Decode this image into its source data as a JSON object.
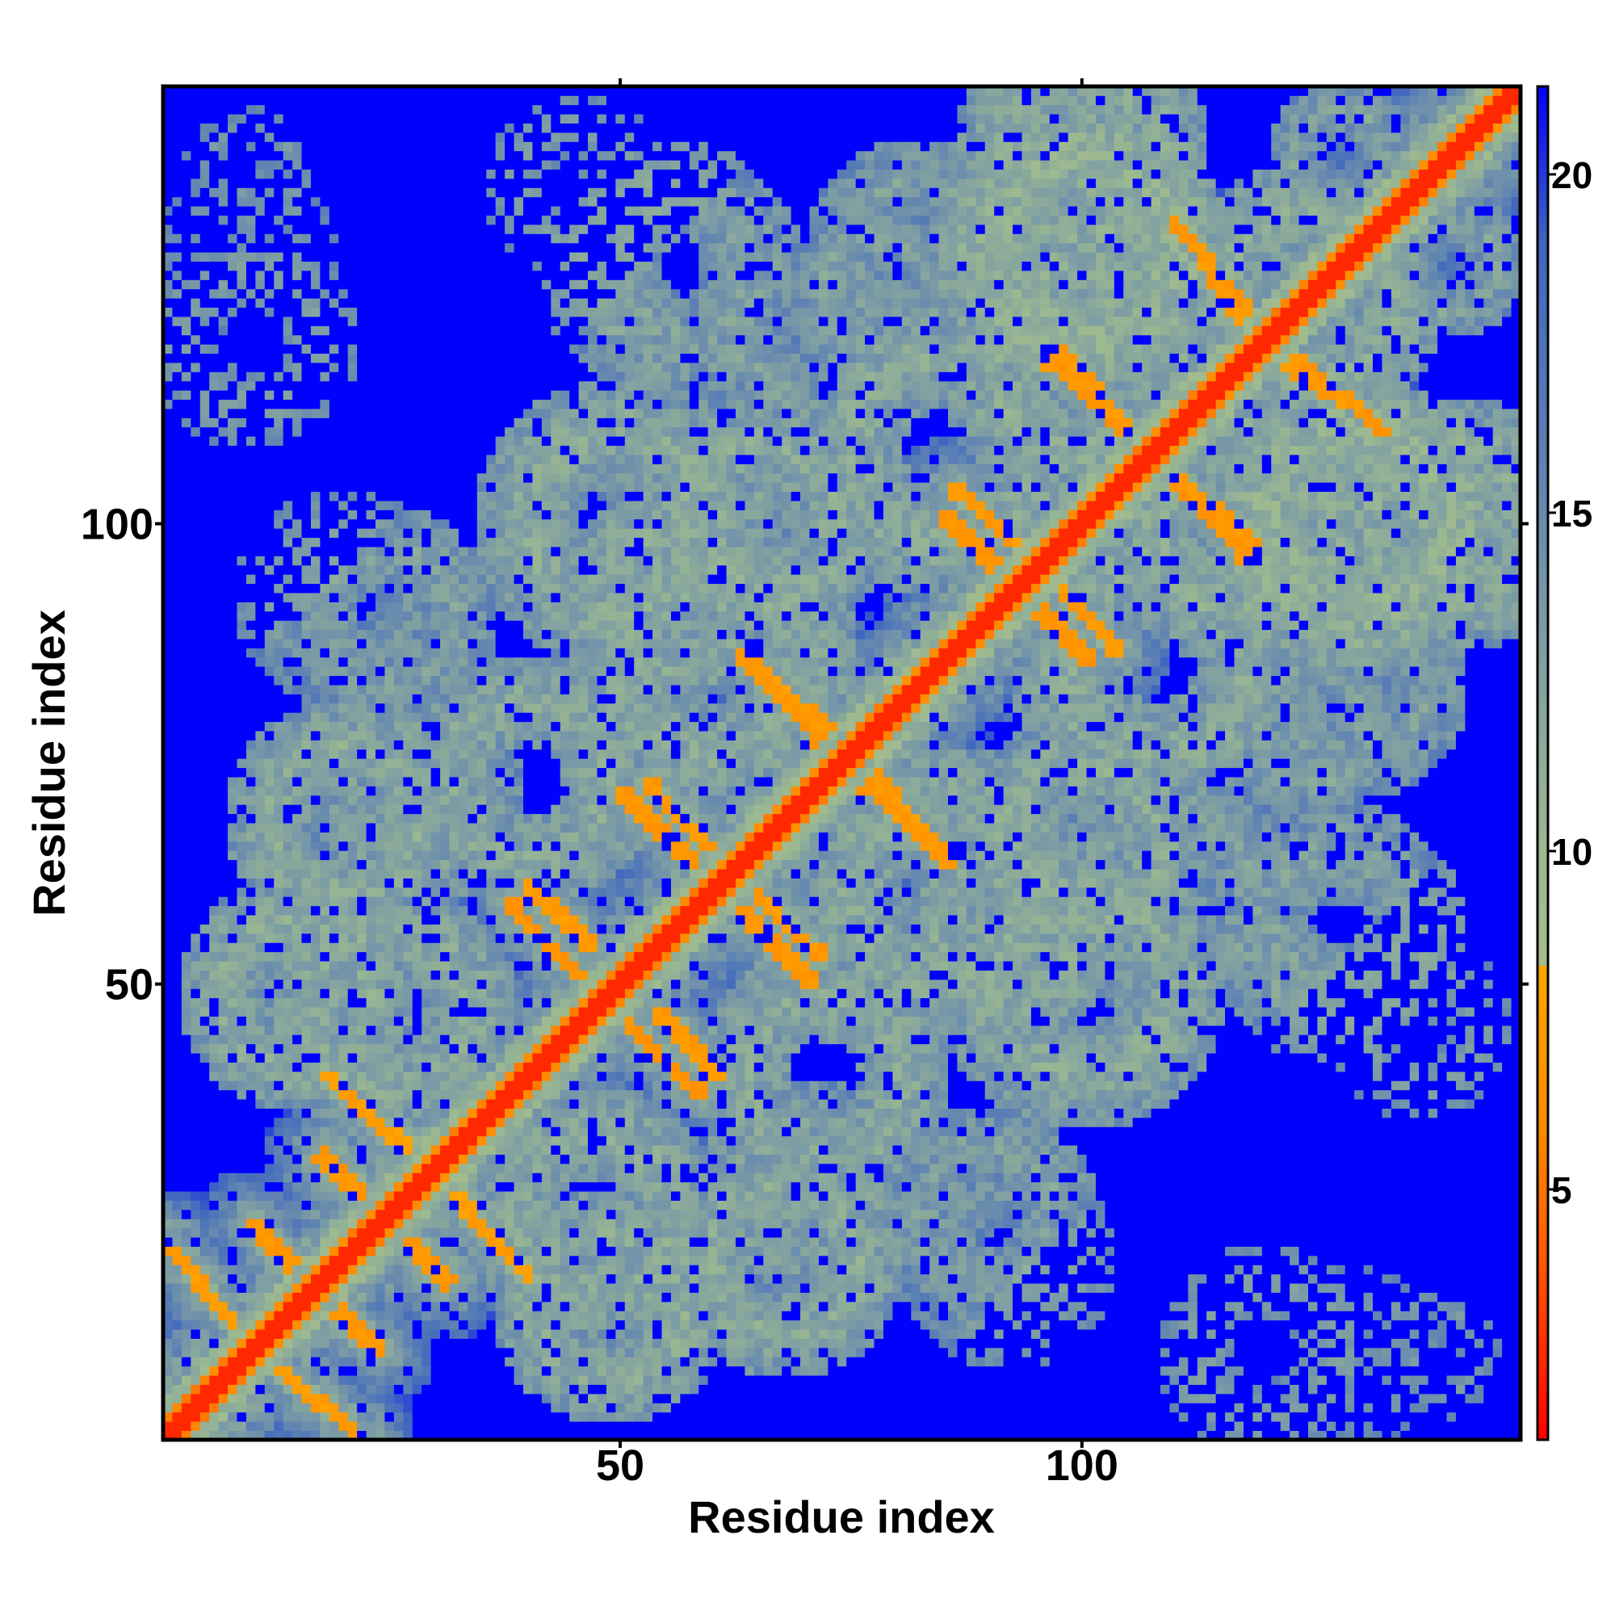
{
  "chart_data": {
    "type": "heatmap",
    "title": "",
    "xlabel": "Residue index",
    "ylabel": "Residue index",
    "xlim": [
      0.5,
      147.5
    ],
    "ylim": [
      0.5,
      147.5
    ],
    "x_ticks": [
      50,
      100
    ],
    "y_ticks": [
      50,
      100
    ],
    "n_residues": 147,
    "grid": false,
    "legend": "right",
    "colorbar": {
      "range": [
        1.3,
        21.3
      ],
      "ticks": [
        5,
        10,
        15,
        20
      ],
      "stops": [
        {
          "value": 1.3,
          "color": "#ff0000"
        },
        {
          "value": 4.0,
          "color": "#ff5a00"
        },
        {
          "value": 6.0,
          "color": "#ff8c00"
        },
        {
          "value": 8.3,
          "color": "#ffa500"
        },
        {
          "value": 8.31,
          "color": "#a7bd8c"
        },
        {
          "value": 10.0,
          "color": "#9bb891"
        },
        {
          "value": 13.5,
          "color": "#7a9aa6"
        },
        {
          "value": 16.0,
          "color": "#5b7fb4"
        },
        {
          "value": 19.0,
          "color": "#3f66c0"
        },
        {
          "value": 21.3,
          "color": "#0000ff"
        }
      ]
    },
    "background_value": 21.3,
    "diagonal": {
      "value": 2.5
    },
    "contact_bands": [
      {
        "from": [
          10,
          24
        ],
        "to": [
          24,
          10
        ],
        "value": 7.2
      },
      {
        "from": [
          13,
          8
        ],
        "to": [
          22,
          1
        ],
        "value": 7.4
      },
      {
        "from": [
          17,
          31
        ],
        "to": [
          32,
          18
        ],
        "value": 7.0
      },
      {
        "from": [
          27,
          33
        ],
        "to": [
          40,
          18
        ],
        "value": 7.6
      },
      {
        "from": [
          38,
          59
        ],
        "to": [
          50,
          46
        ],
        "value": 6.8
      },
      {
        "from": [
          54,
          47
        ],
        "to": [
          61,
          40
        ],
        "value": 7.3
      },
      {
        "from": [
          50,
          71
        ],
        "to": [
          60,
          61
        ],
        "value": 7.0
      },
      {
        "from": [
          63,
          61
        ],
        "to": [
          72,
          53
        ],
        "value": 7.2
      },
      {
        "from": [
          63,
          86
        ],
        "to": [
          72,
          76
        ],
        "value": 6.9
      },
      {
        "from": [
          75,
          76
        ],
        "to": [
          85,
          64
        ],
        "value": 7.4
      },
      {
        "from": [
          85,
          101
        ],
        "to": [
          99,
          87
        ],
        "value": 7.0
      },
      {
        "from": [
          95,
          96
        ],
        "to": [
          104,
          86
        ],
        "value": 7.3
      },
      {
        "from": [
          96,
          118
        ],
        "to": [
          108,
          107
        ],
        "value": 6.8
      },
      {
        "from": [
          106,
          108
        ],
        "to": [
          119,
          98
        ],
        "value": 7.2
      },
      {
        "from": [
          110,
          133
        ],
        "to": [
          118,
          123
        ],
        "value": 7.0
      },
      {
        "from": [
          118,
          120
        ],
        "to": [
          132,
          111
        ],
        "value": 7.5
      }
    ],
    "mid_regions": [
      {
        "center": [
          15,
          49
        ],
        "radius": 13,
        "value": 12
      },
      {
        "center": [
          10,
          130
        ],
        "radius": 10,
        "value": 15
      },
      {
        "center": [
          20,
          92
        ],
        "radius": 12,
        "value": 14
      },
      {
        "center": [
          28,
          70
        ],
        "radius": 12,
        "value": 13
      },
      {
        "center": [
          47,
          25
        ],
        "radius": 14,
        "value": 12
      },
      {
        "center": [
          50,
          100
        ],
        "radius": 16,
        "value": 12
      },
      {
        "center": [
          58,
          128
        ],
        "radius": 12,
        "value": 13
      },
      {
        "center": [
          65,
          100
        ],
        "radius": 14,
        "value": 12
      },
      {
        "center": [
          68,
          20
        ],
        "radius": 13,
        "value": 12
      },
      {
        "center": [
          72,
          40
        ],
        "radius": 14,
        "value": 12
      },
      {
        "center": [
          78,
          125
        ],
        "radius": 10,
        "value": 13
      },
      {
        "center": [
          85,
          60
        ],
        "radius": 16,
        "value": 12
      },
      {
        "center": [
          90,
          25
        ],
        "radius": 12,
        "value": 13
      },
      {
        "center": [
          92,
          55
        ],
        "radius": 12,
        "value": 12
      },
      {
        "center": [
          100,
          130
        ],
        "radius": 16,
        "value": 11
      },
      {
        "center": [
          100,
          50
        ],
        "radius": 16,
        "value": 12
      },
      {
        "center": [
          108,
          85
        ],
        "radius": 16,
        "value": 12
      },
      {
        "center": [
          110,
          60
        ],
        "radius": 14,
        "value": 13
      },
      {
        "center": [
          118,
          100
        ],
        "radius": 16,
        "value": 12
      },
      {
        "center": [
          120,
          10
        ],
        "radius": 12,
        "value": 14
      },
      {
        "center": [
          124,
          125
        ],
        "radius": 14,
        "value": 12
      },
      {
        "center": [
          128,
          55
        ],
        "radius": 14,
        "value": 13
      },
      {
        "center": [
          130,
          82
        ],
        "radius": 12,
        "value": 13
      },
      {
        "center": [
          138,
          10
        ],
        "radius": 8,
        "value": 15
      },
      {
        "center": [
          137,
          45
        ],
        "radius": 10,
        "value": 14
      },
      {
        "center": [
          140,
          100
        ],
        "radius": 14,
        "value": 12
      },
      {
        "center": [
          140,
          128
        ],
        "radius": 8,
        "value": 13
      }
    ],
    "far_cutoff_offset": 75
  }
}
